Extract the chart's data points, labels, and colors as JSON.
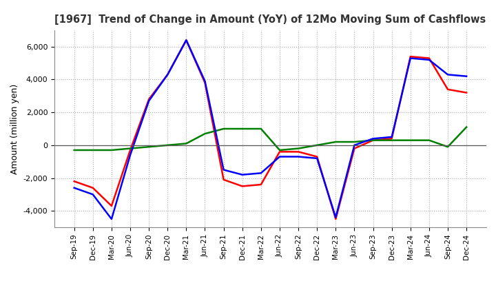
{
  "title": "[1967]  Trend of Change in Amount (YoY) of 12Mo Moving Sum of Cashflows",
  "ylabel": "Amount (million yen)",
  "x_labels": [
    "Sep-19",
    "Dec-19",
    "Mar-20",
    "Jun-20",
    "Sep-20",
    "Dec-20",
    "Mar-21",
    "Jun-21",
    "Sep-21",
    "Dec-21",
    "Mar-22",
    "Jun-22",
    "Sep-22",
    "Dec-22",
    "Mar-23",
    "Jun-23",
    "Sep-23",
    "Dec-23",
    "Mar-24",
    "Jun-24",
    "Sep-24",
    "Dec-24"
  ],
  "operating": [
    -2200,
    -2600,
    -3700,
    -300,
    2800,
    4300,
    6400,
    3800,
    -2100,
    -2500,
    -2400,
    -400,
    -400,
    -700,
    -4500,
    -200,
    300,
    400,
    5400,
    5300,
    3400,
    3200
  ],
  "investing": [
    -300,
    -300,
    -300,
    -200,
    -100,
    0,
    100,
    700,
    1000,
    1000,
    1000,
    -300,
    -200,
    0,
    200,
    200,
    300,
    300,
    300,
    300,
    -100,
    1100
  ],
  "free": [
    -2600,
    -3000,
    -4500,
    -600,
    2700,
    4300,
    6400,
    3900,
    -1500,
    -1800,
    -1700,
    -700,
    -700,
    -800,
    -4400,
    0,
    400,
    500,
    5300,
    5200,
    4300,
    4200
  ],
  "ylim": [
    -5000,
    7000
  ],
  "yticks": [
    -4000,
    -2000,
    0,
    2000,
    4000,
    6000
  ],
  "line_colors": {
    "operating": "#ff0000",
    "investing": "#008000",
    "free": "#0000ff"
  },
  "background_color": "#ffffff",
  "grid_color": "#aaaaaa"
}
